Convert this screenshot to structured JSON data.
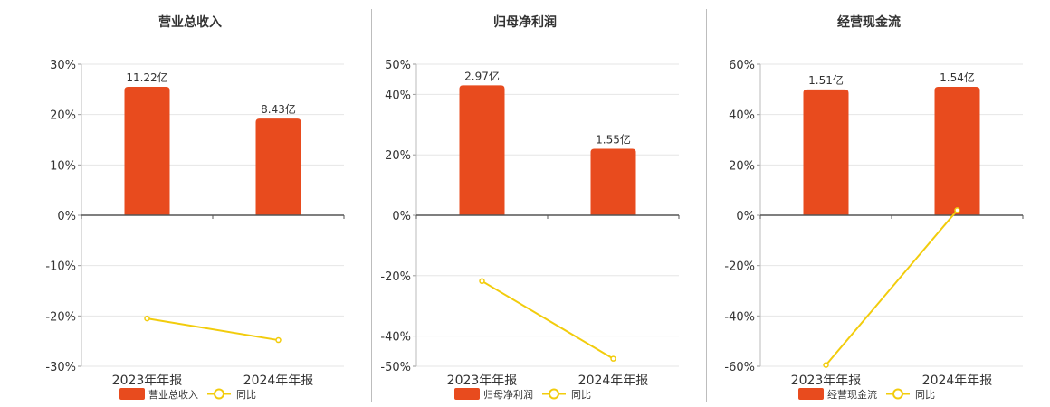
{
  "colors": {
    "bar": "#e84b1e",
    "line": "#f2cc0c",
    "grid": "#e6e6e6",
    "axis": "#333333",
    "text": "#333333"
  },
  "legend_line_label": "同比",
  "categories": [
    "2023年年报",
    "2024年年报"
  ],
  "chart_data": [
    {
      "type": "bar",
      "title": "营业总收入",
      "categories": [
        "2023年年报",
        "2024年年报"
      ],
      "ylim": [
        -30,
        30
      ],
      "yticks": [
        -30,
        -20,
        -10,
        0,
        10,
        20,
        30
      ],
      "ytick_labels": [
        "-30%",
        "-20%",
        "-10%",
        "0%",
        "10%",
        "20%",
        "30%"
      ],
      "bar_series": {
        "name": "营业总收入",
        "values": [
          25.5,
          19.2
        ],
        "labels": [
          "11.22亿",
          "8.43亿"
        ]
      },
      "line_series": {
        "name": "同比",
        "values": [
          -20.5,
          -24.8
        ]
      },
      "legend": "bottom",
      "grid": true
    },
    {
      "type": "bar",
      "title": "归母净利润",
      "categories": [
        "2023年年报",
        "2024年年报"
      ],
      "ylim": [
        -50,
        50
      ],
      "yticks": [
        -50,
        -40,
        -20,
        0,
        20,
        40,
        50
      ],
      "ytick_labels": [
        "-50%",
        "-40%",
        "-20%",
        "0%",
        "20%",
        "40%",
        "50%"
      ],
      "bar_series": {
        "name": "归母净利润",
        "values": [
          43,
          22
        ],
        "labels": [
          "2.97亿",
          "1.55亿"
        ]
      },
      "line_series": {
        "name": "同比",
        "values": [
          -21.8,
          -47.5
        ]
      },
      "legend": "bottom",
      "grid": true
    },
    {
      "type": "bar",
      "title": "经营现金流",
      "categories": [
        "2023年年报",
        "2024年年报"
      ],
      "ylim": [
        -60,
        60
      ],
      "yticks": [
        -60,
        -40,
        -20,
        0,
        20,
        40,
        60
      ],
      "ytick_labels": [
        "-60%",
        "-40%",
        "-20%",
        "0%",
        "20%",
        "40%",
        "60%"
      ],
      "bar_series": {
        "name": "经营现金流",
        "values": [
          50,
          51
        ],
        "labels": [
          "1.51亿",
          "1.54亿"
        ]
      },
      "line_series": {
        "name": "同比",
        "values": [
          -59.5,
          2
        ]
      },
      "legend": "bottom",
      "grid": true
    }
  ]
}
